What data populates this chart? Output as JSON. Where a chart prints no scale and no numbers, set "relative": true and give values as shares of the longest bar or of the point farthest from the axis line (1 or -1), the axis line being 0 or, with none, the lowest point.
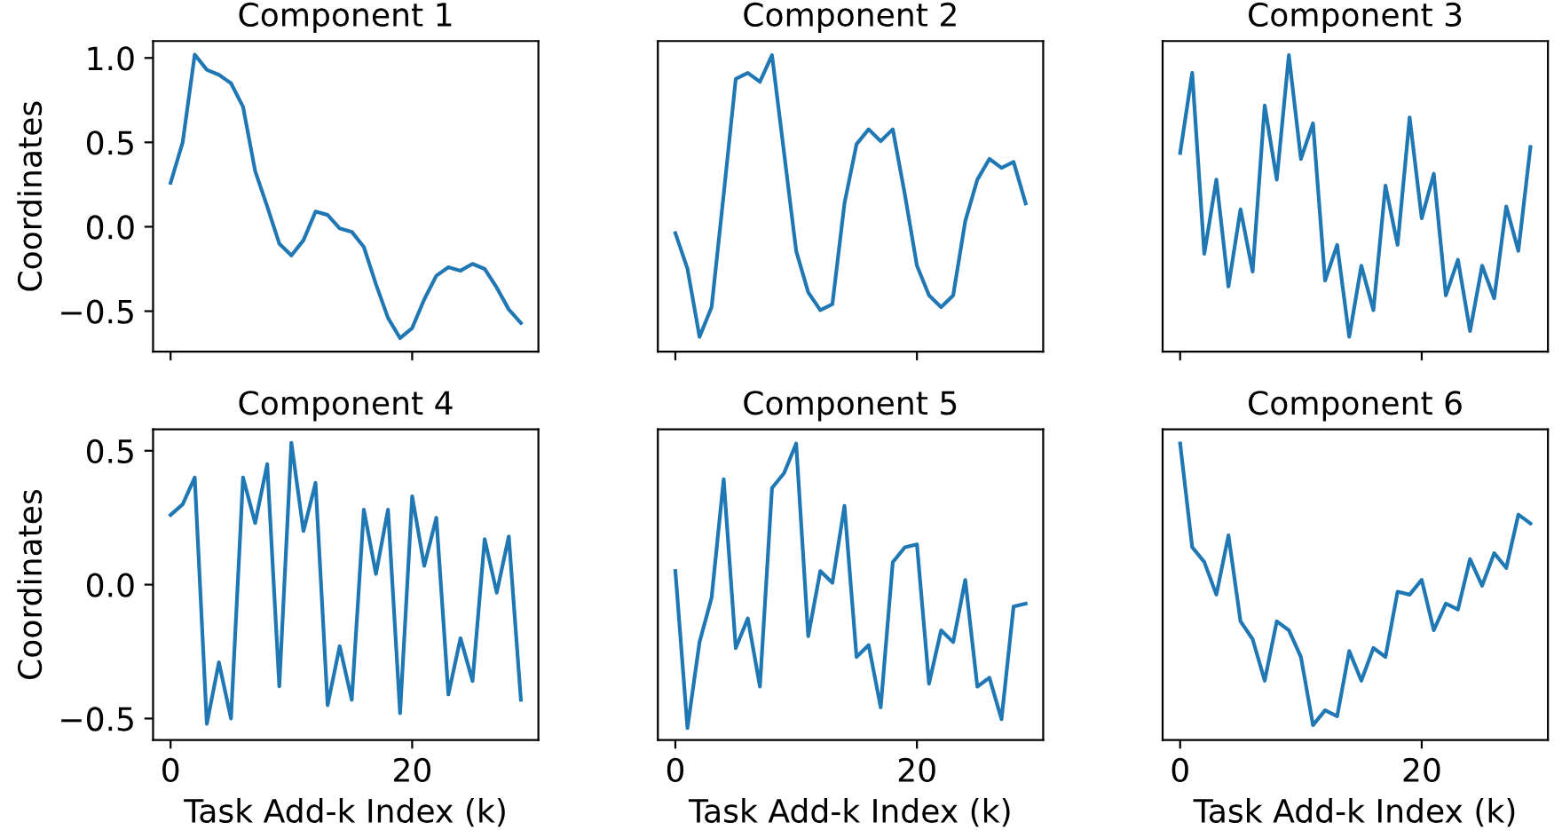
{
  "chart_data": [
    {
      "type": "line",
      "title": "Component 1",
      "ylabel": "Coordinates",
      "tick_labels": "y",
      "x": [
        0,
        1,
        2,
        3,
        4,
        5,
        6,
        7,
        8,
        9,
        10,
        11,
        12,
        13,
        14,
        15,
        16,
        17,
        18,
        19,
        20,
        21,
        22,
        23,
        24,
        25,
        26,
        27,
        28,
        29
      ],
      "series": [
        {
          "color": "#1f77b4",
          "values": [
            0.26,
            0.5,
            1.02,
            0.93,
            0.9,
            0.85,
            0.71,
            0.33,
            0.12,
            -0.1,
            -0.17,
            -0.08,
            0.09,
            0.07,
            -0.01,
            -0.03,
            -0.12,
            -0.34,
            -0.54,
            -0.66,
            -0.6,
            -0.43,
            -0.29,
            -0.24,
            -0.26,
            -0.22,
            -0.25,
            -0.36,
            -0.49,
            -0.57
          ]
        }
      ],
      "xlim": [
        -1.45,
        30.45
      ],
      "xticks": [
        0,
        20
      ],
      "ylim": [
        -0.74,
        1.1
      ],
      "yticks": [
        {
          "value": -0.5,
          "label": "−0.5"
        },
        {
          "value": 0,
          "label": "0.0"
        },
        {
          "value": 0.5,
          "label": "0.5"
        },
        {
          "value": 1,
          "label": "1.0"
        }
      ]
    },
    {
      "type": "line",
      "title": "Component 2",
      "relative": true,
      "tick_labels": false,
      "x": [
        0,
        1,
        2,
        3,
        4,
        5,
        6,
        7,
        8,
        9,
        10,
        11,
        12,
        13,
        14,
        15,
        16,
        17,
        18,
        19,
        20,
        21,
        22,
        23,
        24,
        25,
        26,
        27,
        28,
        29
      ],
      "series": [
        {
          "color": "#1f77b4",
          "values": [
            0.4,
            0.28,
            0.05,
            0.15,
            0.53,
            0.92,
            0.94,
            0.91,
            1,
            0.67,
            0.34,
            0.2,
            0.14,
            0.16,
            0.5,
            0.7,
            0.75,
            0.71,
            0.75,
            0.53,
            0.29,
            0.19,
            0.15,
            0.19,
            0.44,
            0.58,
            0.65,
            0.62,
            0.64,
            0.5
          ]
        }
      ],
      "xlim": [
        -1.45,
        30.45
      ],
      "xticks": [
        0,
        20
      ]
    },
    {
      "type": "line",
      "title": "Component 3",
      "relative": true,
      "tick_labels": false,
      "x": [
        0,
        1,
        2,
        3,
        4,
        5,
        6,
        7,
        8,
        9,
        10,
        11,
        12,
        13,
        14,
        15,
        16,
        17,
        18,
        19,
        20,
        21,
        22,
        23,
        24,
        25,
        26,
        27,
        28,
        29
      ],
      "series": [
        {
          "color": "#1f77b4",
          "values": [
            0.67,
            0.94,
            0.33,
            0.58,
            0.22,
            0.48,
            0.27,
            0.83,
            0.58,
            1,
            0.65,
            0.77,
            0.24,
            0.36,
            0.05,
            0.29,
            0.14,
            0.56,
            0.36,
            0.79,
            0.45,
            0.6,
            0.19,
            0.31,
            0.07,
            0.29,
            0.18,
            0.49,
            0.34,
            0.69
          ]
        }
      ],
      "xlim": [
        -1.45,
        30.45
      ],
      "xticks": [
        0,
        20
      ]
    },
    {
      "type": "line",
      "title": "Component 4",
      "ylabel": "Coordinates",
      "xlabel": "Task Add-k Index (k)",
      "x": [
        0,
        1,
        2,
        3,
        4,
        5,
        6,
        7,
        8,
        9,
        10,
        11,
        12,
        13,
        14,
        15,
        16,
        17,
        18,
        19,
        20,
        21,
        22,
        23,
        24,
        25,
        26,
        27,
        28,
        29
      ],
      "series": [
        {
          "color": "#1f77b4",
          "values": [
            0.26,
            0.3,
            0.4,
            -0.52,
            -0.29,
            -0.5,
            0.4,
            0.23,
            0.45,
            -0.38,
            0.53,
            0.2,
            0.38,
            -0.45,
            -0.23,
            -0.43,
            0.28,
            0.04,
            0.28,
            -0.48,
            0.33,
            0.07,
            0.25,
            -0.41,
            -0.2,
            -0.36,
            0.17,
            -0.03,
            0.18,
            -0.43
          ]
        }
      ],
      "xlim": [
        -1.45,
        30.45
      ],
      "xticks": [
        0,
        20
      ],
      "ylim": [
        -0.58,
        0.58
      ],
      "yticks": [
        {
          "value": -0.5,
          "label": "−0.5"
        },
        {
          "value": 0,
          "label": "0.0"
        },
        {
          "value": 0.5,
          "label": "0.5"
        }
      ]
    },
    {
      "type": "line",
      "title": "Component 5",
      "relative": true,
      "tick_labels": "x",
      "xlabel": "Task Add-k Index (k)",
      "x": [
        0,
        1,
        2,
        3,
        4,
        5,
        6,
        7,
        8,
        9,
        10,
        11,
        12,
        13,
        14,
        15,
        16,
        17,
        18,
        19,
        20,
        21,
        22,
        23,
        24,
        25,
        26,
        27,
        28,
        29
      ],
      "series": [
        {
          "color": "#1f77b4",
          "values": [
            0.57,
            0.04,
            0.33,
            0.48,
            0.88,
            0.31,
            0.41,
            0.18,
            0.85,
            0.9,
            1,
            0.35,
            0.57,
            0.53,
            0.79,
            0.28,
            0.32,
            0.11,
            0.6,
            0.65,
            0.66,
            0.19,
            0.37,
            0.33,
            0.54,
            0.18,
            0.21,
            0.07,
            0.45,
            0.46
          ]
        }
      ],
      "xlim": [
        -1.45,
        30.45
      ],
      "xticks": [
        0,
        20
      ]
    },
    {
      "type": "line",
      "title": "Component 6",
      "relative": true,
      "tick_labels": "x",
      "xlabel": "Task Add-k Index (k)",
      "x": [
        0,
        1,
        2,
        3,
        4,
        5,
        6,
        7,
        8,
        9,
        10,
        11,
        12,
        13,
        14,
        15,
        16,
        17,
        18,
        19,
        20,
        21,
        22,
        23,
        24,
        25,
        26,
        27,
        28,
        29
      ],
      "series": [
        {
          "color": "#1f77b4",
          "values": [
            1,
            0.65,
            0.6,
            0.49,
            0.69,
            0.4,
            0.34,
            0.2,
            0.4,
            0.37,
            0.28,
            0.05,
            0.1,
            0.08,
            0.3,
            0.2,
            0.31,
            0.28,
            0.5,
            0.49,
            0.54,
            0.37,
            0.46,
            0.44,
            0.61,
            0.52,
            0.63,
            0.58,
            0.76,
            0.73
          ]
        }
      ],
      "xlim": [
        -1.45,
        30.45
      ],
      "xticks": [
        0,
        20
      ]
    }
  ]
}
